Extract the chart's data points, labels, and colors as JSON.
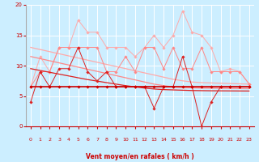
{
  "x": [
    0,
    1,
    2,
    3,
    4,
    5,
    6,
    7,
    8,
    9,
    10,
    11,
    12,
    13,
    14,
    15,
    16,
    17,
    18,
    19,
    20,
    21,
    22,
    23
  ],
  "series": [
    {
      "name": "light_jagged",
      "color": "#ffaaaa",
      "lw": 0.7,
      "marker": "D",
      "ms": 1.8,
      "zorder": 2,
      "y": [
        6.5,
        11.5,
        9.0,
        13.0,
        13.0,
        17.5,
        15.5,
        15.5,
        13.0,
        13.0,
        13.0,
        11.5,
        13.0,
        15.0,
        13.0,
        15.0,
        19.0,
        15.5,
        15.0,
        13.0,
        9.0,
        9.5,
        9.0,
        7.0
      ]
    },
    {
      "name": "medium_jagged",
      "color": "#ff8888",
      "lw": 0.7,
      "marker": "D",
      "ms": 1.8,
      "zorder": 3,
      "y": [
        6.5,
        9.0,
        9.0,
        13.0,
        13.0,
        13.0,
        13.0,
        13.0,
        9.0,
        9.0,
        11.5,
        9.0,
        13.0,
        13.0,
        9.5,
        13.0,
        9.5,
        9.5,
        13.0,
        9.0,
        9.0,
        9.0,
        9.0,
        7.0
      ]
    },
    {
      "name": "trend_light1",
      "color": "#ffaaaa",
      "lw": 0.9,
      "marker": null,
      "ms": 0,
      "zorder": 2,
      "y": [
        13.0,
        12.65,
        12.3,
        11.95,
        11.6,
        11.25,
        10.9,
        10.55,
        10.2,
        9.85,
        9.5,
        9.15,
        8.8,
        8.45,
        8.1,
        7.75,
        7.5,
        7.3,
        7.2,
        7.15,
        7.1,
        7.05,
        7.0,
        6.95
      ]
    },
    {
      "name": "trend_medium2",
      "color": "#ff8888",
      "lw": 0.9,
      "marker": null,
      "ms": 0,
      "zorder": 3,
      "y": [
        11.5,
        11.15,
        10.8,
        10.45,
        10.1,
        9.75,
        9.4,
        9.05,
        8.7,
        8.35,
        8.0,
        7.65,
        7.3,
        6.95,
        6.7,
        6.5,
        6.4,
        6.35,
        6.3,
        6.28,
        6.26,
        6.24,
        6.22,
        6.2
      ]
    },
    {
      "name": "trend_dark3",
      "color": "#dd2222",
      "lw": 0.9,
      "marker": null,
      "ms": 0,
      "zorder": 4,
      "y": [
        9.5,
        9.2,
        8.9,
        8.6,
        8.3,
        8.0,
        7.7,
        7.45,
        7.2,
        6.95,
        6.7,
        6.5,
        6.3,
        6.15,
        6.05,
        6.0,
        5.95,
        5.9,
        5.88,
        5.86,
        5.85,
        5.84,
        5.83,
        5.82
      ]
    },
    {
      "name": "dark_jagged",
      "color": "#dd2222",
      "lw": 0.7,
      "marker": "D",
      "ms": 1.8,
      "zorder": 5,
      "y": [
        4.0,
        9.0,
        6.5,
        9.5,
        9.5,
        13.0,
        9.0,
        7.5,
        9.0,
        6.5,
        6.5,
        6.5,
        6.5,
        3.0,
        6.5,
        6.5,
        11.5,
        6.5,
        0.0,
        4.0,
        6.5,
        6.5,
        6.5,
        6.5
      ]
    },
    {
      "name": "flat_dark",
      "color": "#cc0000",
      "lw": 1.2,
      "marker": "D",
      "ms": 1.8,
      "zorder": 6,
      "y": [
        6.5,
        6.5,
        6.5,
        6.5,
        6.5,
        6.5,
        6.5,
        6.5,
        6.5,
        6.5,
        6.5,
        6.5,
        6.5,
        6.5,
        6.5,
        6.5,
        6.5,
        6.5,
        6.5,
        6.5,
        6.5,
        6.5,
        6.5,
        6.5
      ]
    }
  ],
  "xlabel": "Vent moyen/en rafales ( km/h )",
  "xlim": [
    -0.5,
    23.5
  ],
  "ylim": [
    0,
    20
  ],
  "yticks": [
    0,
    5,
    10,
    15,
    20
  ],
  "xticks": [
    0,
    1,
    2,
    3,
    4,
    5,
    6,
    7,
    8,
    9,
    10,
    11,
    12,
    13,
    14,
    15,
    16,
    17,
    18,
    19,
    20,
    21,
    22,
    23
  ],
  "bg_color": "#cceeff",
  "grid_color": "#ffffff",
  "tick_color": "#cc0000",
  "label_color": "#cc0000",
  "wind_arrows": [
    "↗",
    "↑",
    "↑",
    "↑",
    "↑",
    "↑",
    "↑",
    "↑",
    "↖",
    "↖",
    "↙",
    "↓",
    "→",
    "↓",
    "↓",
    "↓",
    "↓",
    " ",
    "↖",
    "↖",
    "↑",
    "↑",
    "↗",
    "?"
  ]
}
